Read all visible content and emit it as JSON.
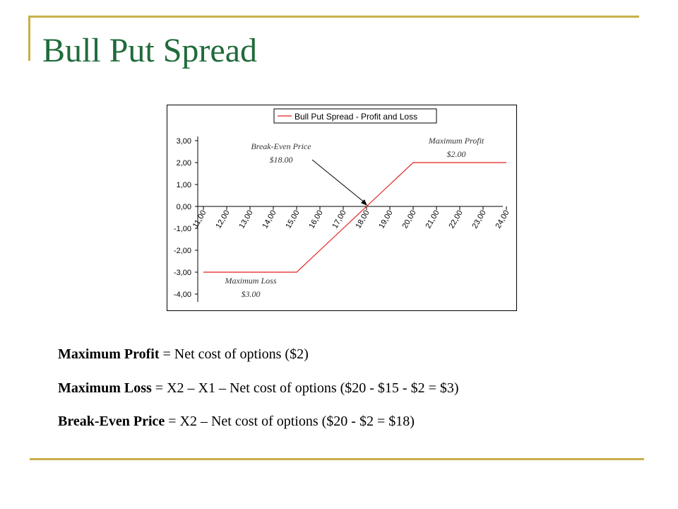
{
  "slide": {
    "title": "Bull Put Spread",
    "accent_color": "#c8b04a",
    "title_color": "#1f6b3a"
  },
  "chart_data": {
    "type": "line",
    "legend": "Bull Put Spread - Profit and Loss",
    "legend_placement": "top",
    "x": [
      11,
      12,
      13,
      14,
      15,
      16,
      17,
      18,
      19,
      20,
      21,
      22,
      23,
      24
    ],
    "x_tick_labels": [
      "11,00",
      "12,00",
      "13,00",
      "14,00",
      "15,00",
      "16,00",
      "17,00",
      "18,00",
      "19,00",
      "20,00",
      "21,00",
      "22,00",
      "23,00",
      "24,00"
    ],
    "y_tick_labels": [
      "3,00",
      "2,00",
      "1,00",
      "0,00",
      "-1,00",
      "-2,00",
      "-3,00",
      "-4,00"
    ],
    "y_ticks": [
      3,
      2,
      1,
      0,
      -1,
      -2,
      -3,
      -4
    ],
    "ylim": [
      -4,
      3
    ],
    "series": [
      {
        "name": "Bull Put Spread - Profit and Loss",
        "color": "#e0201a",
        "values": [
          -3,
          -3,
          -3,
          -3,
          -3,
          -2,
          -1,
          0,
          1,
          2,
          2,
          2,
          2,
          2
        ]
      }
    ],
    "annotations": [
      {
        "id": "breakeven",
        "line1": "Break-Even Price",
        "line2": "$18.00",
        "x": 18,
        "y": 0,
        "arrow": true
      },
      {
        "id": "maxprofit",
        "line1": "Maximum Profit",
        "line2": "$2.00",
        "x": 21,
        "y": 2
      },
      {
        "id": "maxloss",
        "line1": "Maximum Loss",
        "line2": "$3.00",
        "x": 13,
        "y": -3
      }
    ]
  },
  "formulas": [
    {
      "bold": "Maximum Profit",
      "text": " = Net cost of options ($2)"
    },
    {
      "bold": "Maximum Loss",
      "text": " = X2 – X1 – Net cost of options ($20 - $15 - $2 = $3)"
    },
    {
      "bold": "Break-Even Price",
      "text": " = X2 – Net cost of options ($20 - $2 = $18)"
    }
  ]
}
